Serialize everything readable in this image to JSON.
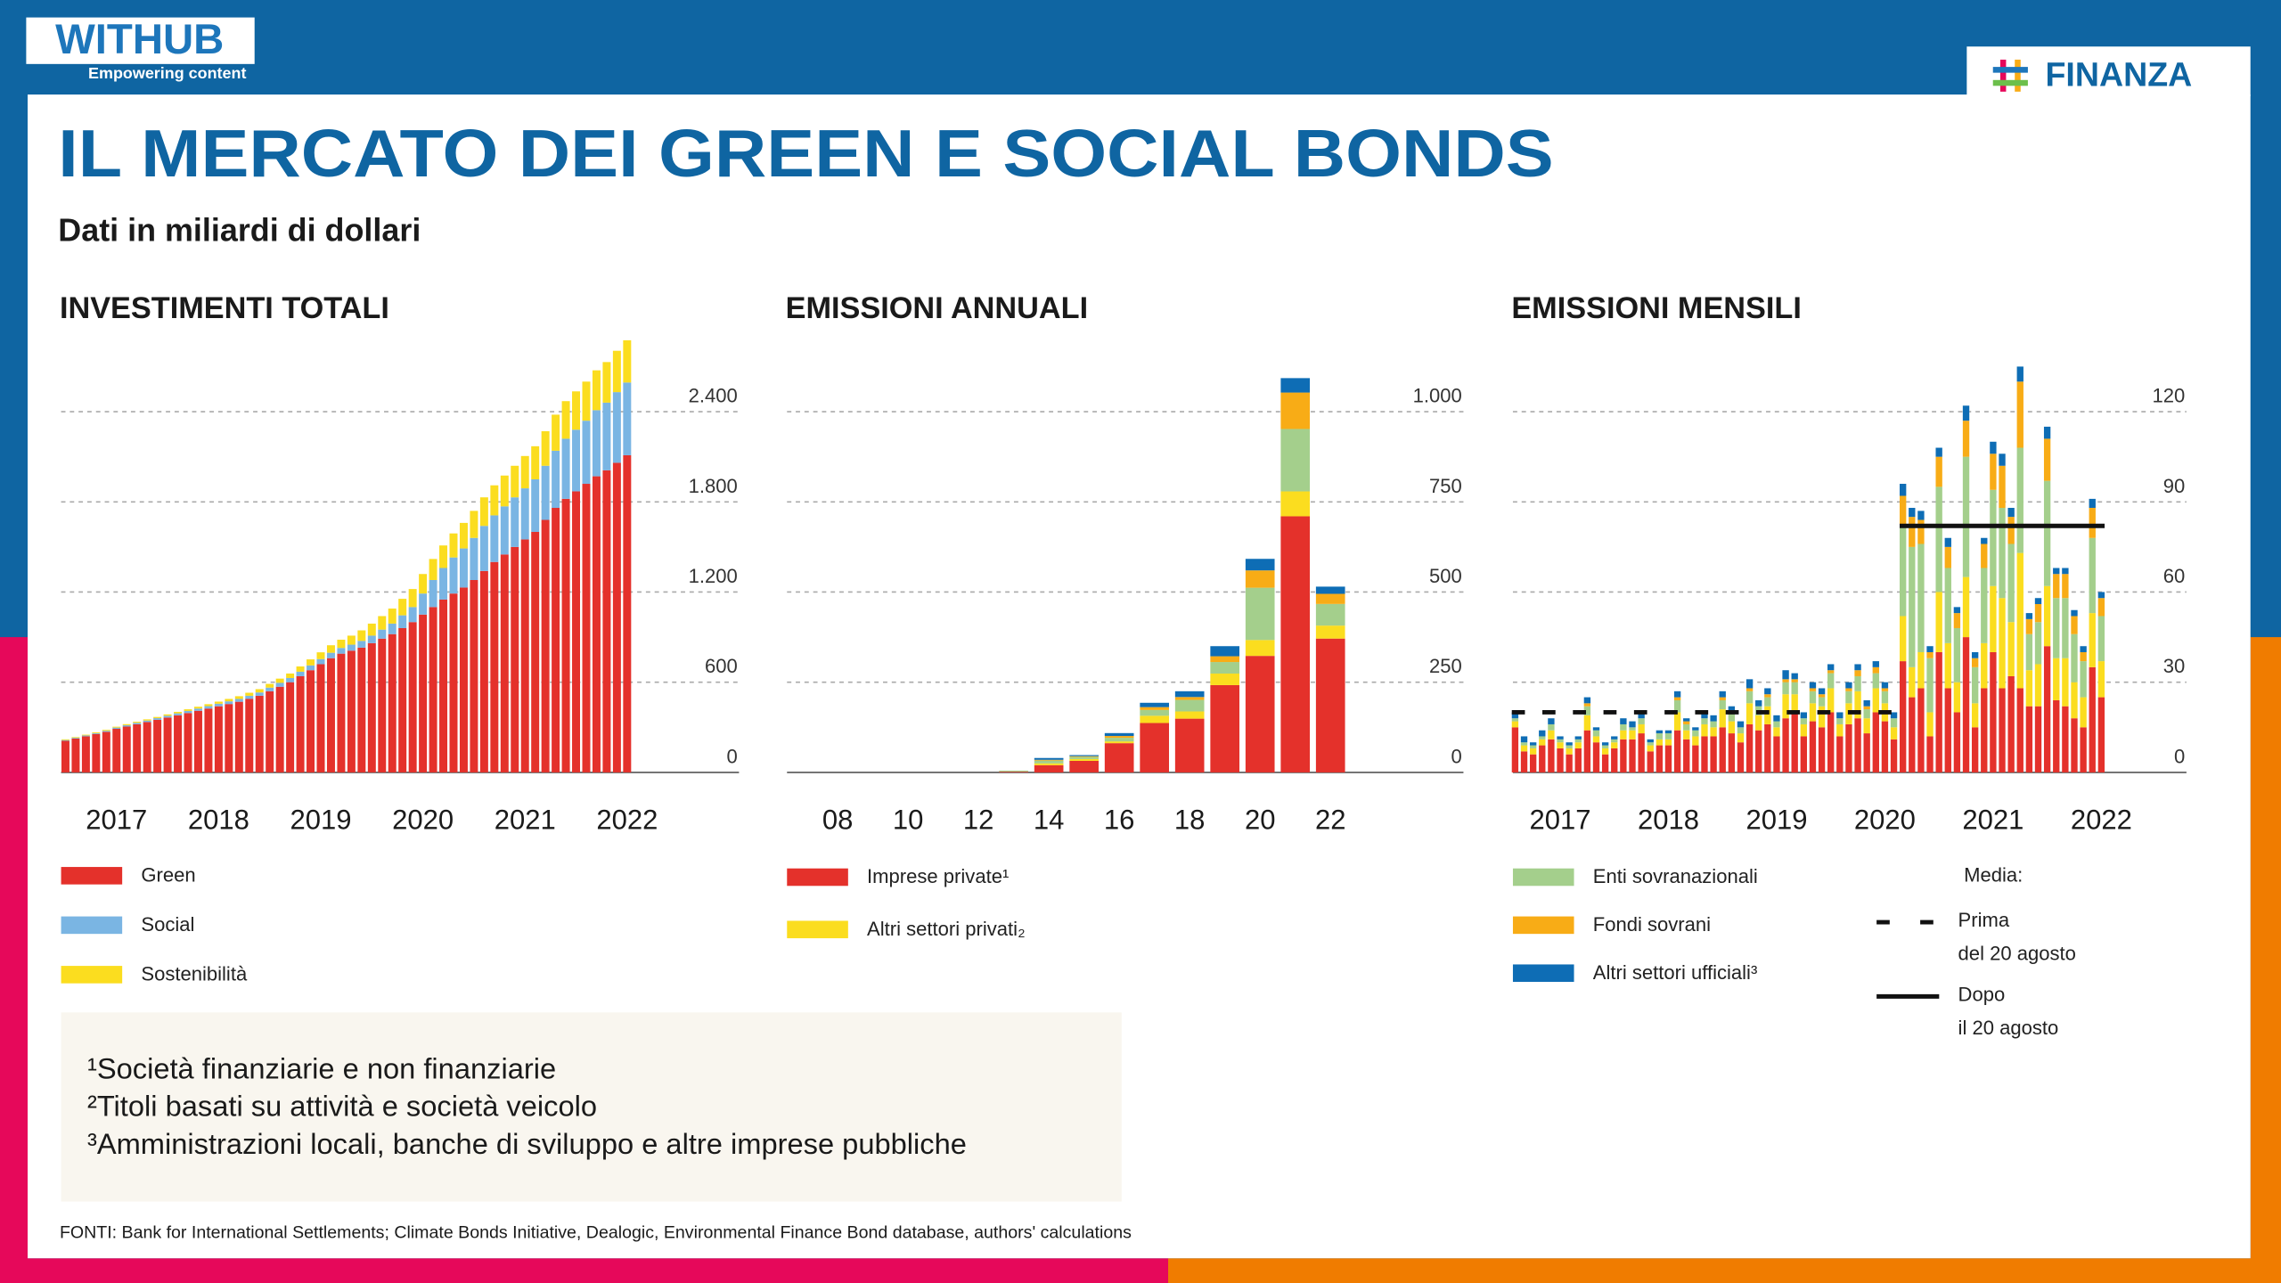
{
  "header": {
    "brand": "WITHUB",
    "tagline": "Empowering content",
    "section": "FINANZA",
    "title": "IL MERCATO DEI GREEN E SOCIAL BONDS",
    "subtitle": "Dati in miliardi di dollari"
  },
  "chart_data": [
    {
      "type": "bar",
      "stacked": true,
      "title": "INVESTIMENTI TOTALI",
      "categories": [
        null,
        null,
        null,
        null,
        null,
        "2017",
        null,
        null,
        null,
        null,
        null,
        null,
        null,
        null,
        null,
        "2018",
        null,
        null,
        null,
        null,
        null,
        null,
        null,
        null,
        null,
        "2019",
        null,
        null,
        null,
        null,
        null,
        null,
        null,
        null,
        null,
        "2020",
        null,
        null,
        null,
        null,
        null,
        null,
        null,
        null,
        null,
        "2021",
        null,
        null,
        null,
        null,
        null,
        null,
        null,
        null,
        null,
        "2022"
      ],
      "series": [
        {
          "name": "Green",
          "color": "#e4312b",
          "values": [
            210,
            225,
            240,
            255,
            270,
            290,
            305,
            320,
            335,
            350,
            365,
            380,
            395,
            410,
            425,
            440,
            455,
            470,
            490,
            510,
            540,
            570,
            600,
            640,
            680,
            720,
            760,
            790,
            810,
            830,
            860,
            890,
            920,
            960,
            1000,
            1050,
            1100,
            1150,
            1190,
            1230,
            1280,
            1340,
            1400,
            1450,
            1500,
            1550,
            1600,
            1680,
            1760,
            1820,
            1870,
            1920,
            1970,
            2010,
            2060,
            2110
          ]
        },
        {
          "name": "Social",
          "color": "#7ab5e3",
          "values": [
            5,
            5,
            6,
            6,
            7,
            8,
            9,
            10,
            10,
            11,
            12,
            13,
            14,
            15,
            16,
            17,
            18,
            19,
            20,
            22,
            24,
            26,
            28,
            30,
            32,
            34,
            36,
            38,
            40,
            45,
            50,
            60,
            70,
            85,
            100,
            140,
            180,
            210,
            240,
            260,
            280,
            300,
            310,
            320,
            330,
            340,
            350,
            360,
            380,
            400,
            410,
            420,
            440,
            450,
            470,
            484
          ]
        },
        {
          "name": "Sostenibilità",
          "color": "#fbdd1f",
          "values": [
            5,
            5,
            5,
            6,
            6,
            6,
            7,
            7,
            8,
            8,
            9,
            10,
            11,
            12,
            13,
            14,
            16,
            18,
            20,
            22,
            25,
            28,
            30,
            35,
            40,
            45,
            50,
            55,
            60,
            70,
            80,
            90,
            100,
            110,
            120,
            130,
            140,
            150,
            160,
            170,
            180,
            190,
            200,
            205,
            210,
            215,
            220,
            230,
            240,
            250,
            255,
            260,
            265,
            270,
            275,
            281
          ]
        }
      ],
      "ylim": [
        0,
        2880
      ],
      "yticks": [
        0,
        600,
        {
          "value": 1200,
          "label": "1.200"
        },
        {
          "value": 1800,
          "label": "1.800"
        },
        {
          "value": 2400,
          "label": "2.400"
        }
      ],
      "grid": true
    },
    {
      "type": "bar",
      "stacked": true,
      "title": "EMISSIONI ANNUALI",
      "categories": [
        null,
        "08",
        null,
        "10",
        null,
        "12",
        null,
        "14",
        null,
        "16",
        null,
        "18",
        null,
        "20",
        null,
        "22"
      ],
      "series": [
        {
          "name": "Imprese private¹",
          "color": "#e4312b",
          "values": [
            0,
            0,
            0,
            0,
            0,
            0,
            2,
            20,
            32,
            81,
            137,
            149,
            242,
            323,
            710,
            371
          ]
        },
        {
          "name": "Altri settori privati₂",
          "color": "#fbdd1f",
          "values": [
            0,
            0,
            0,
            0,
            0,
            0,
            0,
            5,
            5,
            5,
            20,
            20,
            32,
            44,
            69,
            36
          ]
        },
        {
          "color": "#a4cf8c",
          "values": [
            0,
            0,
            0,
            0,
            0,
            0,
            3,
            8,
            6,
            10,
            16,
            32,
            32,
            145,
            173,
            60
          ]
        },
        {
          "color": "#f8ac16",
          "values": [
            0,
            0,
            0,
            0,
            0,
            0,
            0,
            2,
            2,
            5,
            8,
            8,
            16,
            48,
            101,
            28
          ]
        },
        {
          "color": "#0e6db5",
          "values": [
            0,
            0,
            0,
            0,
            0,
            0,
            0,
            5,
            3,
            8,
            12,
            16,
            28,
            32,
            40,
            20
          ]
        }
      ],
      "ylim": [
        0,
        1100
      ],
      "yticks": [
        0,
        250,
        500,
        750,
        {
          "value": 1000,
          "label": "1.000"
        }
      ],
      "grid": true
    },
    {
      "type": "bar",
      "stacked": true,
      "title": "EMISSIONI MENSILI",
      "categories": [
        null,
        null,
        null,
        null,
        null,
        "2017",
        null,
        null,
        null,
        null,
        null,
        null,
        null,
        null,
        null,
        null,
        null,
        "2018",
        null,
        null,
        null,
        null,
        null,
        null,
        null,
        null,
        null,
        null,
        null,
        "2019",
        null,
        null,
        null,
        null,
        null,
        null,
        null,
        null,
        null,
        null,
        null,
        "2020",
        null,
        null,
        null,
        null,
        null,
        null,
        null,
        null,
        null,
        null,
        null,
        "2021",
        null,
        null,
        null,
        null,
        null,
        null,
        null,
        null,
        null,
        null,
        null,
        "2022"
      ],
      "series": [
        {
          "color": "#e4312b",
          "values": [
            15,
            7,
            6,
            9,
            11,
            8,
            6,
            8,
            14,
            10,
            6,
            8,
            11,
            11,
            13,
            7,
            9,
            9,
            14,
            11,
            9,
            12,
            12,
            15,
            13,
            10,
            16,
            14,
            16,
            12,
            18,
            20,
            12,
            17,
            15,
            20,
            12,
            16,
            18,
            13,
            20,
            17,
            11,
            37,
            25,
            28,
            12,
            40,
            28,
            20,
            45,
            15,
            28,
            40,
            28,
            32,
            28,
            22,
            22,
            42,
            24,
            22,
            18,
            15,
            35,
            25
          ]
        },
        {
          "color": "#fbdd1f",
          "values": [
            2,
            2,
            2,
            2,
            3,
            2,
            2,
            2,
            5,
            2,
            2,
            2,
            3,
            3,
            3,
            2,
            2,
            2,
            6,
            3,
            3,
            4,
            3,
            6,
            4,
            3,
            7,
            5,
            6,
            3,
            8,
            6,
            4,
            6,
            7,
            8,
            4,
            7,
            9,
            5,
            8,
            6,
            4,
            15,
            10,
            12,
            8,
            20,
            15,
            10,
            20,
            8,
            15,
            22,
            30,
            18,
            45,
            12,
            14,
            20,
            14,
            16,
            12,
            10,
            18,
            12
          ]
        },
        {
          "name": "Enti sovranazionali",
          "color": "#a4cf8c",
          "values": [
            1,
            1,
            1,
            1,
            2,
            1,
            1,
            1,
            3,
            2,
            1,
            1,
            2,
            1,
            2,
            1,
            2,
            2,
            4,
            2,
            2,
            2,
            2,
            3,
            3,
            2,
            4,
            3,
            3,
            2,
            4,
            4,
            2,
            4,
            3,
            5,
            2,
            4,
            5,
            3,
            5,
            4,
            3,
            30,
            40,
            36,
            18,
            35,
            25,
            18,
            40,
            12,
            25,
            32,
            30,
            26,
            35,
            12,
            14,
            35,
            20,
            20,
            16,
            12,
            25,
            15
          ]
        },
        {
          "name": "Fondi sovrani",
          "color": "#f8ac16",
          "values": [
            0,
            0,
            0,
            0,
            0,
            0,
            0,
            0,
            1,
            0,
            0,
            0,
            0,
            0,
            0,
            0,
            0,
            0,
            1,
            1,
            0,
            0,
            0,
            1,
            0,
            0,
            1,
            0,
            1,
            0,
            1,
            1,
            0,
            1,
            1,
            1,
            0,
            1,
            2,
            1,
            2,
            1,
            0,
            10,
            10,
            8,
            2,
            10,
            7,
            5,
            12,
            3,
            8,
            12,
            14,
            9,
            22,
            5,
            6,
            14,
            8,
            8,
            6,
            3,
            10,
            6
          ]
        },
        {
          "name": "Altri settori ufficiali³",
          "color": "#0e6db5",
          "values": [
            2,
            2,
            1,
            2,
            2,
            1,
            1,
            1,
            2,
            1,
            1,
            1,
            2,
            2,
            2,
            1,
            1,
            1,
            2,
            1,
            1,
            2,
            2,
            2,
            2,
            2,
            3,
            2,
            2,
            2,
            3,
            2,
            2,
            2,
            2,
            2,
            2,
            2,
            2,
            2,
            2,
            2,
            2,
            4,
            3,
            3,
            2,
            3,
            3,
            2,
            5,
            2,
            2,
            4,
            4,
            3,
            5,
            2,
            2,
            4,
            2,
            2,
            2,
            2,
            3,
            2
          ]
        }
      ],
      "averages_title": "Media:",
      "averages": [
        {
          "value": 20,
          "start": 0,
          "end": 42,
          "style": "dashed",
          "label": [
            "Prima",
            "del 20 agosto"
          ]
        },
        {
          "value": 82,
          "start": 43,
          "end": 65,
          "style": "solid",
          "label": [
            "Dopo",
            "il 20 agosto"
          ]
        }
      ],
      "ylim": [
        0,
        135
      ],
      "yticks": [
        0,
        30,
        60,
        90,
        120
      ],
      "grid": true
    }
  ],
  "notes": [
    "¹Società finanziarie e non finanziarie",
    "²Titoli basati su attività e società veicolo",
    "³Amministrazioni locali, banche di sviluppo e altre imprese pubbliche"
  ],
  "source": "FONTI: Bank for International Settlements; Climate Bonds Initiative, Dealogic, Environmental Finance Bond database, authors' calculations"
}
